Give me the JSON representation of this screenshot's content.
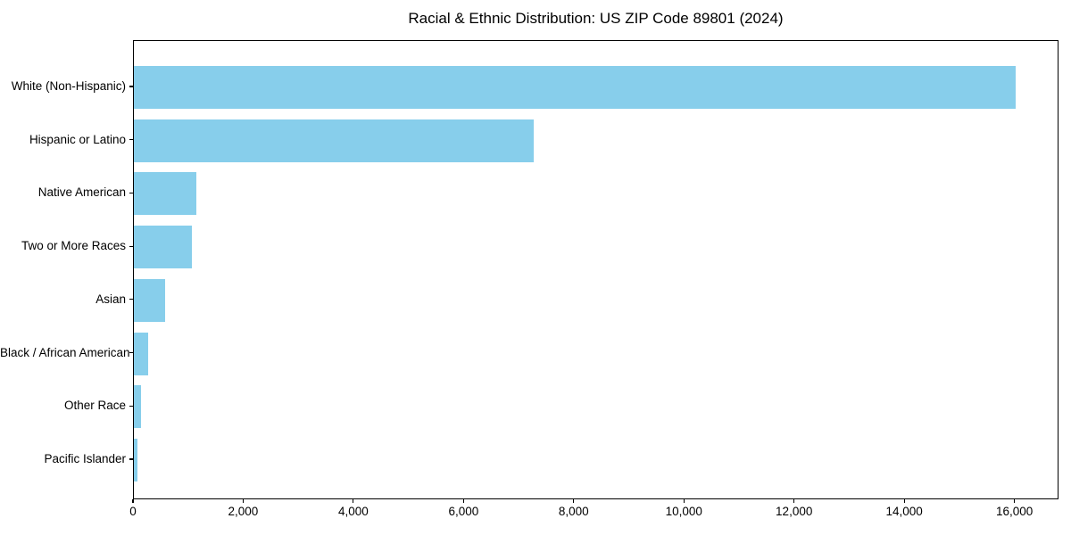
{
  "chart_data": {
    "type": "bar",
    "orientation": "horizontal",
    "title": "Racial & Ethnic Distribution: US ZIP Code 89801 (2024)",
    "categories": [
      "White (Non-Hispanic)",
      "Hispanic or Latino",
      "Native American",
      "Two or More Races",
      "Asian",
      "Black / African American",
      "Other Race",
      "Pacific Islander"
    ],
    "values": [
      16000,
      7250,
      1130,
      1050,
      570,
      260,
      130,
      70
    ],
    "xlabel": "",
    "ylabel": "",
    "xlim": [
      0,
      16800
    ],
    "x_ticks": [
      0,
      2000,
      4000,
      6000,
      8000,
      10000,
      12000,
      14000,
      16000
    ],
    "x_tick_labels": [
      "0",
      "2,000",
      "4,000",
      "6,000",
      "8,000",
      "10,000",
      "12,000",
      "14,000",
      "16,000"
    ],
    "bar_color": "#87CEEB",
    "text_color": "#000000",
    "grid": false,
    "legend": null,
    "frame": "full-box"
  }
}
